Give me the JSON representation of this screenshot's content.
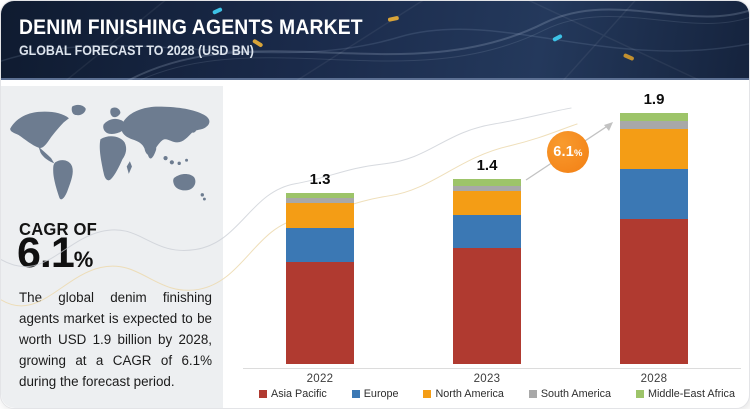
{
  "header": {
    "title": "DENIM FINISHING AGENTS MARKET",
    "subtitle": "GLOBAL FORECAST TO 2028 (USD BN)"
  },
  "left_panel": {
    "cagr_label": "CAGR OF",
    "cagr_value": "6.1",
    "cagr_unit": "%",
    "description": "The global denim finishing agents market is expected to be worth USD 1.9 billion by 2028, growing at a CAGR of 6.1% during the forecast period."
  },
  "badge": {
    "value": "6.1",
    "unit": "%",
    "color_start": "#f89b2e",
    "color_end": "#f37f14"
  },
  "chart_data": {
    "type": "bar",
    "stacked": true,
    "grid": false,
    "value_unit": "USD BN",
    "categories": [
      "2022",
      "2023",
      "2028"
    ],
    "totals": [
      "1.3",
      "1.4",
      "1.9"
    ],
    "series": [
      {
        "name": "Asia Pacific",
        "color": "#b03a30",
        "values": [
          0.77,
          0.88,
          1.1
        ]
      },
      {
        "name": "Europe",
        "color": "#3b78b4",
        "values": [
          0.26,
          0.25,
          0.38
        ]
      },
      {
        "name": "North America",
        "color": "#f49d15",
        "values": [
          0.19,
          0.18,
          0.3
        ]
      },
      {
        "name": "South America",
        "color": "#a8a8a8",
        "values": [
          0.04,
          0.04,
          0.06
        ]
      },
      {
        "name": "Middle-East Africa",
        "color": "#9dc469",
        "values": [
          0.04,
          0.05,
          0.06
        ]
      }
    ],
    "annotation": "6.1%",
    "legend_position": "bottom"
  }
}
